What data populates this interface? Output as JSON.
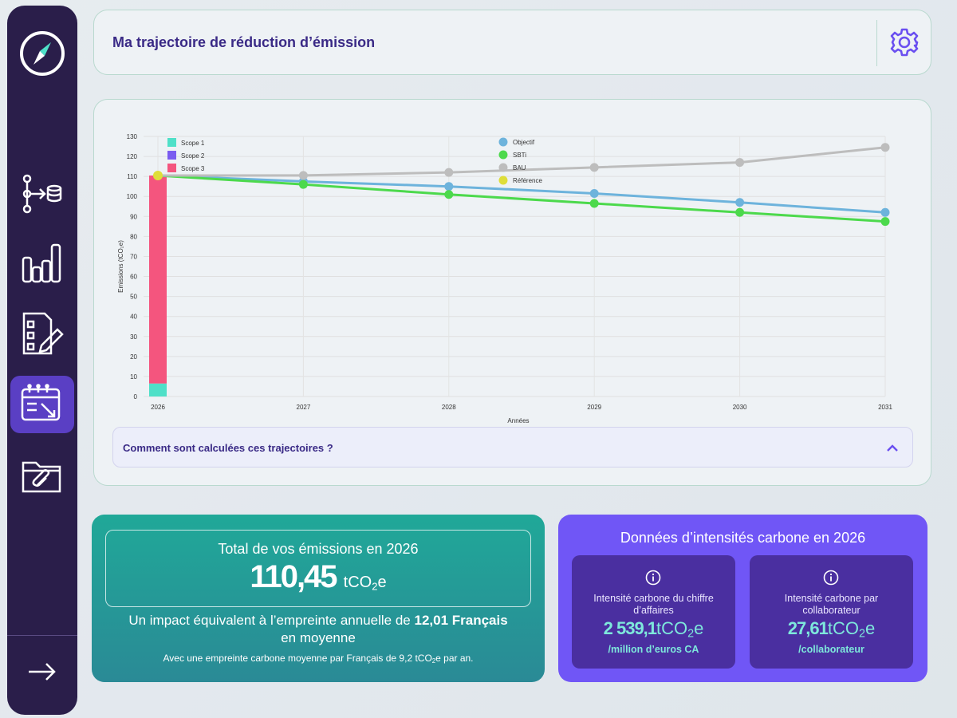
{
  "header": {
    "title": "Ma trajectoire de réduction d’émission"
  },
  "sidebar": {
    "items": [
      {
        "icon": "data-flow-icon"
      },
      {
        "icon": "bar-chart-icon"
      },
      {
        "icon": "checklist-edit-icon"
      },
      {
        "icon": "calendar-trend-icon",
        "active": true
      },
      {
        "icon": "attachment-folder-icon"
      }
    ],
    "footer_icon": "arrow-right-icon"
  },
  "chart_data": {
    "type": "line",
    "xlabel": "Années",
    "ylabel": "Emissions (tCO₂e)",
    "x": [
      2026,
      2027,
      2028,
      2029,
      2030,
      2031
    ],
    "ylim": [
      0,
      130
    ],
    "yticks": [
      0,
      10,
      20,
      30,
      40,
      50,
      60,
      70,
      80,
      90,
      100,
      110,
      120,
      130
    ],
    "grid": true,
    "series": [
      {
        "name": "Objectif",
        "color": "#6db3dc",
        "values": [
          110.45,
          107.5,
          105,
          101.5,
          97,
          92
        ]
      },
      {
        "name": "SBTi",
        "color": "#4cd94c",
        "values": [
          110.45,
          106,
          101,
          96.5,
          92,
          87.5
        ]
      },
      {
        "name": "BAU",
        "color": "#bdbdbd",
        "values": [
          110.45,
          110.5,
          112,
          114.5,
          117,
          124.5
        ]
      },
      {
        "name": "Référence",
        "color": "#dede3a",
        "values": [
          110.45,
          null,
          null,
          null,
          null,
          null
        ]
      }
    ],
    "stacked_bar": {
      "x": 2026,
      "segments": [
        {
          "name": "Scope 1",
          "color": "#4fe0c8",
          "value": 6.5
        },
        {
          "name": "Scope 2",
          "color": "#7a5cf0",
          "value": 0
        },
        {
          "name": "Scope 3",
          "color": "#f4557e",
          "value": 103.95
        }
      ]
    },
    "legend_bars": [
      "Scope 1",
      "Scope 2",
      "Scope 3"
    ],
    "legend_lines": [
      "Objectif",
      "SBTi",
      "BAU",
      "Référence"
    ]
  },
  "accordion": {
    "label": "Comment sont calculées ces trajectoires ?"
  },
  "total_card": {
    "title": "Total de vos émissions en 2026",
    "value": "110,45",
    "unit_prefix": "tCO",
    "unit_sub": "2",
    "unit_suffix": "e",
    "impact_prefix": "Un impact équivalent à l’empreinte annuelle de ",
    "impact_bold": "12,01 Français",
    "impact_suffix": " en moyenne",
    "footnote_prefix": "Avec une empreinte carbone moyenne par Français de 9,2 tCO",
    "footnote_sub": "2",
    "footnote_suffix": "e par an."
  },
  "intensity_card": {
    "title": "Données d’intensités carbone en 2026",
    "cards": [
      {
        "label": "Intensité carbone du chiffre d’affaires",
        "value": "2 539,1",
        "unit_prefix": "tCO",
        "unit_sub": "2",
        "unit_suffix": "e",
        "suffix": "/million d’euros CA"
      },
      {
        "label": "Intensité carbone par collaborateur",
        "value": "27,61",
        "unit_prefix": "tCO",
        "unit_sub": "2",
        "unit_suffix": "e",
        "suffix": "/collaborateur"
      }
    ]
  }
}
